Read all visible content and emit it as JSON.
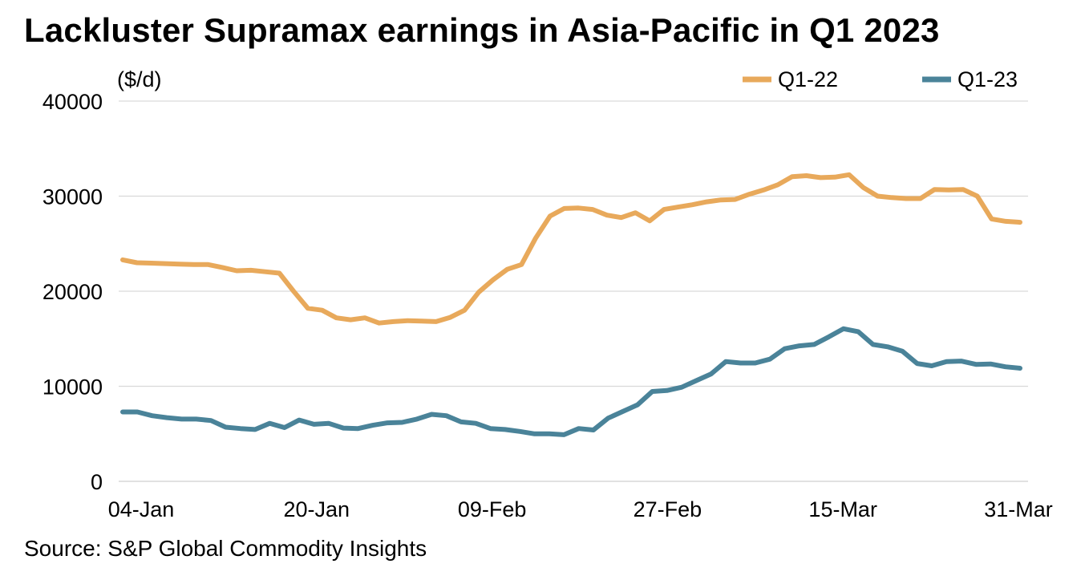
{
  "title": "Lackluster Supramax earnings in Asia-Pacific in Q1 2023",
  "source": "Source: S&P Global Commodity Insights",
  "chart_data": {
    "type": "line",
    "title": "Lackluster Supramax earnings in Asia-Pacific in Q1 2023",
    "ylabel": "($/d)",
    "xlabel": "",
    "ylim": [
      0,
      40000
    ],
    "y_ticks": [
      "0",
      "10000",
      "20000",
      "30000",
      "40000"
    ],
    "x_ticks": [
      "04-Jan",
      "20-Jan",
      "09-Feb",
      "27-Feb",
      "15-Mar",
      "31-Mar"
    ],
    "grid": "horizontal",
    "legend": "top-right",
    "series": [
      {
        "name": "Q1-22",
        "color": "#E8A95B",
        "values": [
          23300,
          23000,
          22950,
          22900,
          22850,
          22800,
          22800,
          22500,
          22150,
          22200,
          22050,
          21900,
          20000,
          18200,
          18000,
          17200,
          17000,
          17200,
          16650,
          16800,
          16900,
          16850,
          16800,
          17250,
          18000,
          19900,
          21200,
          22300,
          22800,
          25600,
          27900,
          28700,
          28750,
          28600,
          28000,
          27750,
          28250,
          27400,
          28600,
          28850,
          29100,
          29400,
          29600,
          29650,
          30200,
          30650,
          31200,
          32050,
          32150,
          31950,
          32000,
          32250,
          30900,
          30000,
          29850,
          29750,
          29750,
          30700,
          30650,
          30700,
          30000,
          27600,
          27350,
          27250
        ]
      },
      {
        "name": "Q1-23",
        "color": "#4A8399",
        "values": [
          7300,
          7300,
          6900,
          6700,
          6550,
          6550,
          6400,
          5700,
          5550,
          5450,
          6100,
          5650,
          6450,
          6000,
          6100,
          5600,
          5550,
          5900,
          6150,
          6200,
          6550,
          7050,
          6900,
          6250,
          6100,
          5550,
          5450,
          5250,
          5000,
          5000,
          4900,
          5550,
          5400,
          6650,
          7350,
          8050,
          9450,
          9550,
          9900,
          10600,
          11300,
          12600,
          12450,
          12450,
          12850,
          13950,
          14250,
          14400,
          15200,
          16050,
          15750,
          14400,
          14150,
          13700,
          12400,
          12150,
          12600,
          12650,
          12300,
          12350,
          12050,
          11900
        ]
      }
    ]
  }
}
